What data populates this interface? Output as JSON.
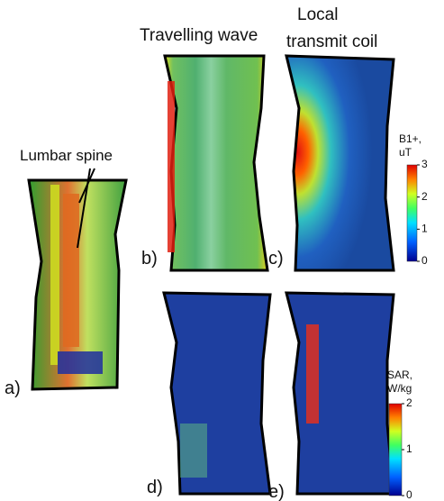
{
  "headings": {
    "travelling": "Travelling wave",
    "local": [
      "Local",
      "transmit coil"
    ]
  },
  "annotation": "Lumbar spine",
  "panels": [
    "a)",
    "b)",
    "c)",
    "d)",
    "e)"
  ],
  "colorbars": [
    {
      "label": [
        "B1+,",
        "uT"
      ],
      "lim": [
        0,
        3
      ],
      "ticks": [
        0,
        1,
        2,
        3
      ]
    },
    {
      "label": [
        "SAR,",
        "W/kg"
      ],
      "lim": [
        0,
        2
      ],
      "ticks": [
        0,
        1,
        2
      ]
    }
  ]
}
